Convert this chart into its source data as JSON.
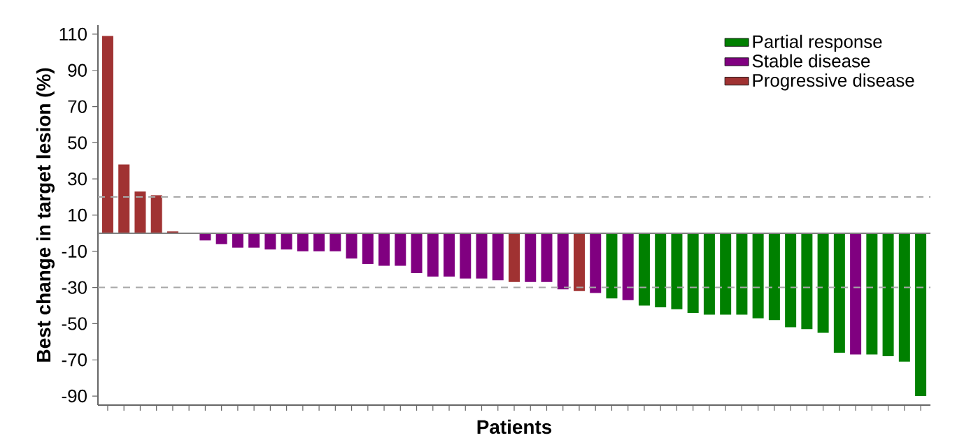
{
  "chart_data": {
    "type": "bar",
    "xlabel": "Patients",
    "ylabel": "Best change in target lesion (%)",
    "categories": [
      null,
      null,
      null,
      null,
      null,
      null,
      null,
      null,
      null,
      null,
      null,
      null,
      null,
      null,
      null,
      null,
      null,
      null,
      null,
      null,
      null,
      null,
      null,
      null,
      null,
      null,
      null,
      null,
      null,
      null,
      null,
      null,
      null,
      null,
      null,
      null,
      null,
      null,
      null,
      null,
      null,
      null,
      null,
      null,
      null,
      null,
      null,
      null,
      null,
      null,
      null
    ],
    "series": [
      {
        "name": "Partial response",
        "color": "#008000",
        "values": [
          null,
          null,
          null,
          null,
          null,
          null,
          null,
          null,
          null,
          null,
          null,
          null,
          null,
          null,
          null,
          null,
          null,
          null,
          null,
          null,
          null,
          null,
          null,
          null,
          null,
          null,
          null,
          null,
          null,
          null,
          null,
          -36,
          null,
          -40,
          -41,
          -42,
          -44,
          -45,
          -45,
          -45,
          -47,
          -48,
          -52,
          -53,
          -55,
          -66,
          null,
          -67,
          -68,
          -71,
          -90
        ]
      },
      {
        "name": "Stable disease",
        "color": "#800080",
        "values": [
          null,
          null,
          null,
          null,
          null,
          null,
          -4,
          -6,
          -8,
          -8,
          -9,
          -9,
          -10,
          -10,
          -10,
          -14,
          -17,
          -18,
          -18,
          -22,
          -24,
          -24,
          -25,
          -25,
          -26,
          null,
          -27,
          -27,
          -31,
          null,
          -33,
          null,
          -37,
          null,
          null,
          null,
          null,
          null,
          null,
          null,
          null,
          null,
          null,
          null,
          null,
          null,
          -67,
          null,
          null,
          null,
          null
        ]
      },
      {
        "name": "Progressive disease",
        "color": "#a03232",
        "values": [
          109,
          38,
          23,
          21,
          1,
          null,
          null,
          null,
          null,
          null,
          null,
          null,
          null,
          null,
          null,
          null,
          null,
          null,
          null,
          null,
          null,
          null,
          null,
          null,
          null,
          -27,
          null,
          null,
          null,
          -32,
          null,
          null,
          null,
          null,
          null,
          null,
          null,
          null,
          null,
          null,
          null,
          null,
          null,
          null,
          null,
          null,
          null,
          null,
          null,
          null,
          null
        ]
      }
    ],
    "ylim": [
      -95,
      115
    ],
    "yticks": [
      110,
      90,
      70,
      50,
      30,
      10,
      -10,
      -30,
      -50,
      -70,
      -90
    ],
    "ref_lines": [
      {
        "axis": "y",
        "value": 20,
        "color": "#a8a8a8",
        "line_style": "dashed"
      },
      {
        "axis": "y",
        "value": -30,
        "color": "#a8a8a8",
        "line_style": "dashed"
      },
      {
        "axis": "y",
        "value": 0,
        "color": "#808080",
        "line_style": "solid"
      }
    ],
    "grid": false,
    "legend": "top right",
    "tick_labels": "y"
  }
}
